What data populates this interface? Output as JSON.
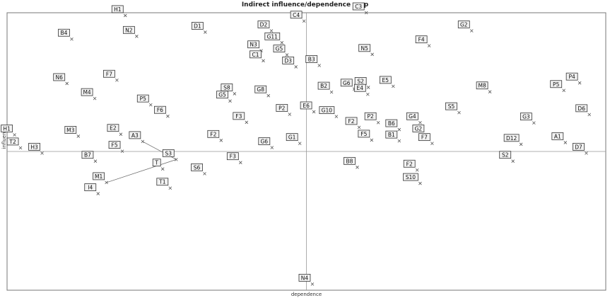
{
  "chart_data": {
    "type": "scatter",
    "title": "Indirect influence/dependence map",
    "xlabel": "dependence",
    "ylabel": "influence",
    "grid": false,
    "colors": {
      "axis": "#999999",
      "frame": "#777777",
      "label_fill": "#f2f2f2",
      "label_stroke": "#333333",
      "marker": "#555555"
    },
    "points": [
      {
        "label": "H1",
        "x": 0.395,
        "y": 0.99
      },
      {
        "label": "N2",
        "x": 0.433,
        "y": 0.915
      },
      {
        "label": "D1",
        "x": 0.662,
        "y": 0.93
      },
      {
        "label": "B4",
        "x": 0.216,
        "y": 0.905
      },
      {
        "label": "D2",
        "x": 0.883,
        "y": 0.935
      },
      {
        "label": "G11",
        "x": 0.918,
        "y": 0.892
      },
      {
        "label": "N3",
        "x": 0.849,
        "y": 0.863
      },
      {
        "label": "G5",
        "x": 0.935,
        "y": 0.848
      },
      {
        "label": "C1",
        "x": 0.856,
        "y": 0.827
      },
      {
        "label": "C4",
        "x": 0.992,
        "y": 0.97
      },
      {
        "label": "D3",
        "x": 0.965,
        "y": 0.805
      },
      {
        "label": "B3",
        "x": 1.043,
        "y": 0.81
      },
      {
        "label": "C3",
        "x": 1.2,
        "y": 1.0
      },
      {
        "label": "N5",
        "x": 1.22,
        "y": 0.85
      },
      {
        "label": "F4",
        "x": 1.41,
        "y": 0.881
      },
      {
        "label": "G2",
        "x": 1.552,
        "y": 0.935
      },
      {
        "label": "N6",
        "x": 0.2,
        "y": 0.745
      },
      {
        "label": "F7",
        "x": 0.367,
        "y": 0.757
      },
      {
        "label": "M4",
        "x": 0.293,
        "y": 0.691
      },
      {
        "label": "P5",
        "x": 0.48,
        "y": 0.668
      },
      {
        "label": "F6",
        "x": 0.537,
        "y": 0.627
      },
      {
        "label": "S8",
        "x": 0.76,
        "y": 0.708
      },
      {
        "label": "G8",
        "x": 0.873,
        "y": 0.701
      },
      {
        "label": "G5",
        "x": 0.745,
        "y": 0.682
      },
      {
        "label": "B2",
        "x": 1.084,
        "y": 0.714
      },
      {
        "label": "G6",
        "x": 1.16,
        "y": 0.725
      },
      {
        "label": "S2",
        "x": 1.207,
        "y": 0.731
      },
      {
        "label": "E5",
        "x": 1.29,
        "y": 0.735
      },
      {
        "label": "E4",
        "x": 1.205,
        "y": 0.706
      },
      {
        "label": "M8",
        "x": 1.613,
        "y": 0.715
      },
      {
        "label": "P4",
        "x": 1.913,
        "y": 0.747
      },
      {
        "label": "P5",
        "x": 1.86,
        "y": 0.72
      },
      {
        "label": "P2",
        "x": 0.944,
        "y": 0.634
      },
      {
        "label": "E6",
        "x": 1.025,
        "y": 0.643
      },
      {
        "label": "G10",
        "x": 1.1,
        "y": 0.626
      },
      {
        "label": "F3",
        "x": 0.8,
        "y": 0.605
      },
      {
        "label": "S5",
        "x": 1.51,
        "y": 0.64
      },
      {
        "label": "D6",
        "x": 1.945,
        "y": 0.633
      },
      {
        "label": "P2",
        "x": 1.24,
        "y": 0.604
      },
      {
        "label": "G4",
        "x": 1.38,
        "y": 0.604
      },
      {
        "label": "G3",
        "x": 1.76,
        "y": 0.603
      },
      {
        "label": "F2",
        "x": 1.176,
        "y": 0.587
      },
      {
        "label": "B6",
        "x": 1.31,
        "y": 0.579
      },
      {
        "label": "G2",
        "x": 1.4,
        "y": 0.56
      },
      {
        "label": "H1",
        "x": 0.025,
        "y": 0.56
      },
      {
        "label": "M3",
        "x": 0.238,
        "y": 0.555
      },
      {
        "label": "E2",
        "x": 0.38,
        "y": 0.562
      },
      {
        "label": "A3",
        "x": 0.453,
        "y": 0.536
      },
      {
        "label": "F2",
        "x": 0.715,
        "y": 0.54
      },
      {
        "label": "F5",
        "x": 1.218,
        "y": 0.541
      },
      {
        "label": "B1",
        "x": 1.31,
        "y": 0.538
      },
      {
        "label": "F7",
        "x": 1.42,
        "y": 0.529
      },
      {
        "label": "G1",
        "x": 0.978,
        "y": 0.529
      },
      {
        "label": "G6",
        "x": 0.885,
        "y": 0.514
      },
      {
        "label": "D12",
        "x": 1.717,
        "y": 0.526
      },
      {
        "label": "A1",
        "x": 1.865,
        "y": 0.532
      },
      {
        "label": "D7",
        "x": 1.935,
        "y": 0.494
      },
      {
        "label": "T2",
        "x": 0.045,
        "y": 0.513
      },
      {
        "label": "H3",
        "x": 0.117,
        "y": 0.494
      },
      {
        "label": "F5",
        "x": 0.385,
        "y": 0.501
      },
      {
        "label": "B7",
        "x": 0.295,
        "y": 0.465
      },
      {
        "label": "S3",
        "x": 0.565,
        "y": 0.471
      },
      {
        "label": "T",
        "x": 0.52,
        "y": 0.437
      },
      {
        "label": "F3",
        "x": 0.78,
        "y": 0.46
      },
      {
        "label": "S6",
        "x": 0.66,
        "y": 0.42
      },
      {
        "label": "B8",
        "x": 1.17,
        "y": 0.443
      },
      {
        "label": "F2",
        "x": 1.37,
        "y": 0.433
      },
      {
        "label": "S2",
        "x": 1.69,
        "y": 0.465
      },
      {
        "label": "M1",
        "x": 0.332,
        "y": 0.388
      },
      {
        "label": "S10",
        "x": 1.38,
        "y": 0.385
      },
      {
        "label": "I4",
        "x": 0.304,
        "y": 0.348
      },
      {
        "label": "T1",
        "x": 0.545,
        "y": 0.368
      },
      {
        "label": "N4",
        "x": 1.02,
        "y": 0.022
      }
    ],
    "links": [
      {
        "from": "M1",
        "to": "S3"
      },
      {
        "from": "A3",
        "to": "S3"
      }
    ]
  }
}
